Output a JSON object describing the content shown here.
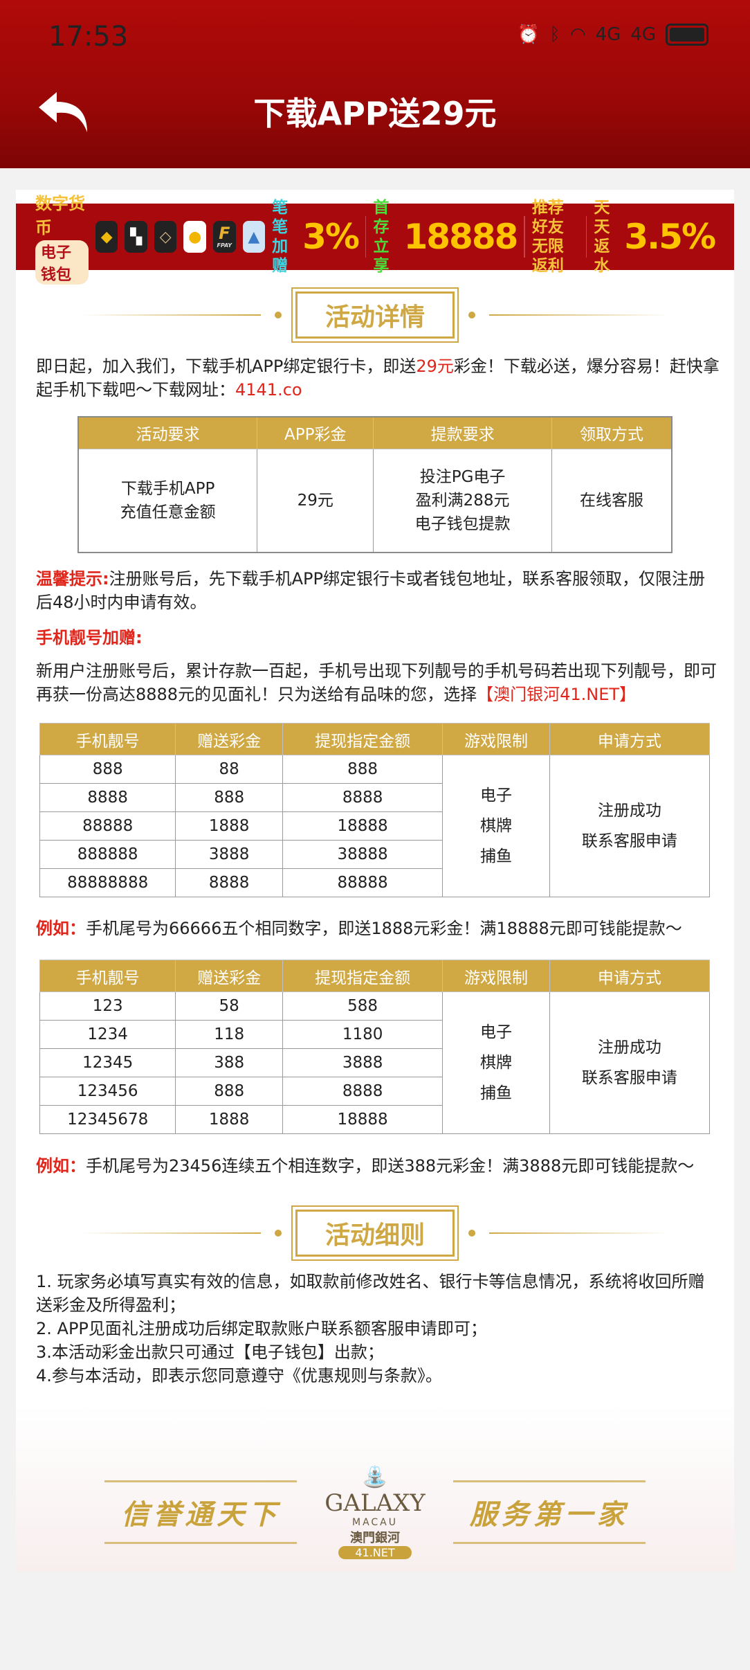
{
  "status": {
    "time": "17:53",
    "signal": "4G"
  },
  "header": {
    "title": "下载APP送29元"
  },
  "banner": {
    "crypto": "数字货币",
    "wallet": "电子钱包",
    "apps": [
      "binance",
      "okx",
      "huobi",
      "bean",
      "FPAY",
      "topay"
    ],
    "p1a": "笔笔",
    "p1b": "加赠",
    "p1v": "3%",
    "p2a": "首存",
    "p2b": "立享",
    "p2v": "18888",
    "p3a": "推荐好友",
    "p3b": "无限返利",
    "p4a": "天天",
    "p4b": "返水",
    "p4v": "3.5%"
  },
  "section1": {
    "title": "活动详情"
  },
  "intro": {
    "text1": "即日起，加入我们，下载手机APP绑定银行卡，即送",
    "amount": "29元",
    "text2": "彩金！下载必送，爆分容易！赶快拿起手机下载吧～下载网址：",
    "url": "4141.co"
  },
  "table1": {
    "headers": [
      "活动要求",
      "APP彩金",
      "提款要求",
      "领取方式"
    ],
    "row": [
      "下载手机APP\n充值任意金额",
      "29元",
      "投注PG电子\n盈利满288元\n电子钱包提款",
      "在线客服"
    ]
  },
  "tip": {
    "label": "温馨提示:",
    "text": "注册账号后，先下载手机APP绑定银行卡或者钱包地址，联系客服领取，仅限注册后48小时内申请有效。"
  },
  "bonus": {
    "title": "手机靓号加赠:",
    "text": "新用户注册账号后，累计存款一百起，手机号出现下列靓号的手机号码若出现下列靓号，即可再获一份高达8888元的见面礼！只为送给有品味的您，选择",
    "brand": "【澳门银河41.NET】"
  },
  "table2": {
    "headers": [
      "手机靓号",
      "赠送彩金",
      "提现指定金额",
      "游戏限制",
      "申请方式"
    ],
    "rows": [
      [
        "888",
        "88",
        "888"
      ],
      [
        "8888",
        "888",
        "8888"
      ],
      [
        "88888",
        "1888",
        "18888"
      ],
      [
        "888888",
        "3888",
        "38888"
      ],
      [
        "88888888",
        "8888",
        "88888"
      ]
    ],
    "games": [
      "电子",
      "棋牌",
      "捕鱼"
    ],
    "apply": [
      "注册成功",
      "联系客服申请"
    ]
  },
  "example1": {
    "label": "例如：",
    "text": "手机尾号为66666五个相同数字，即送1888元彩金！满18888元即可钱能提款～"
  },
  "table3": {
    "headers": [
      "手机靓号",
      "赠送彩金",
      "提现指定金额",
      "游戏限制",
      "申请方式"
    ],
    "rows": [
      [
        "123",
        "58",
        "588"
      ],
      [
        "1234",
        "118",
        "1180"
      ],
      [
        "12345",
        "388",
        "3888"
      ],
      [
        "123456",
        "888",
        "8888"
      ],
      [
        "12345678",
        "1888",
        "18888"
      ]
    ],
    "games": [
      "电子",
      "棋牌",
      "捕鱼"
    ],
    "apply": [
      "注册成功",
      "联系客服申请"
    ]
  },
  "example2": {
    "label": "例如：",
    "text": "手机尾号为23456连续五个相连数字，即送388元彩金！满3888元即可钱能提款～"
  },
  "section2": {
    "title": "活动细则"
  },
  "rules": [
    "1. 玩家务必填写真实有效的信息，如取款前修改姓名、银行卡等信息情况，系统将收回所赠送彩金及所得盈利；",
    "2. APP见面礼注册成功后绑定取款账户联系额客服申请即可；",
    "3.本活动彩金出款只可通过【电子钱包】出款；",
    "4.参与本活动，即表示您同意遵守《优惠规则与条款》。"
  ],
  "footer": {
    "left": "信誉通天下",
    "right": "服务第一家",
    "logo": "GALAXY",
    "logo_sub": "MACAU",
    "logo_cn": "澳門銀河",
    "logo_net": "41.NET"
  },
  "colors": {
    "header": "#a8090d",
    "gold": "#d0a944",
    "red": "#e0251b"
  }
}
